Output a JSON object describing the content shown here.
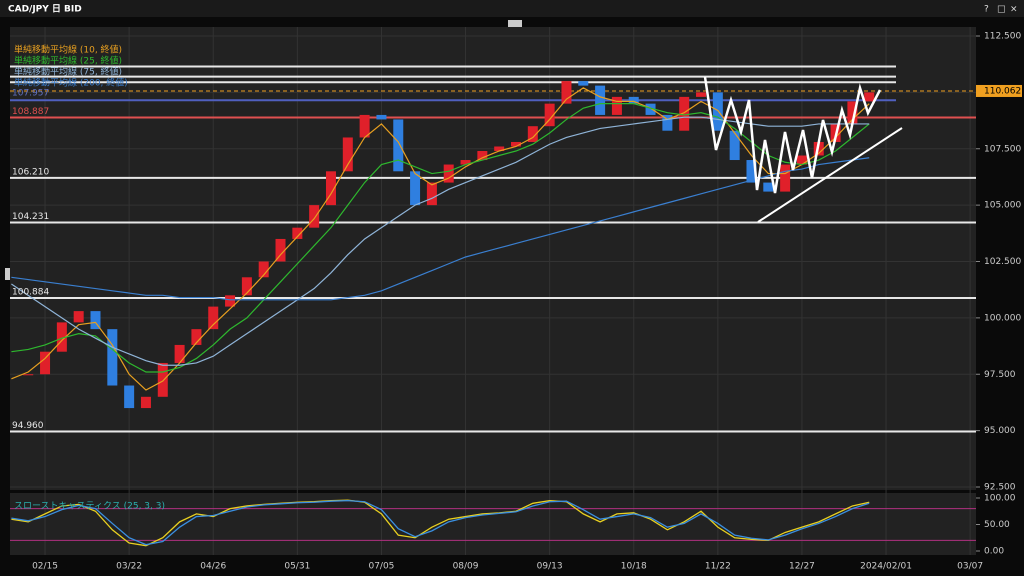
{
  "window": {
    "title": "CAD/JPY 日 BID",
    "buttons": [
      "?",
      "□",
      "×"
    ]
  },
  "chart_data": [
    {
      "type": "candlestick",
      "x": [
        null,
        null,
        "02/15",
        null,
        null,
        null,
        null,
        "03/22",
        null,
        null,
        null,
        null,
        "04/26",
        null,
        null,
        null,
        null,
        "05/31",
        null,
        null,
        null,
        null,
        "07/05",
        null,
        null,
        null,
        null,
        "08/09",
        null,
        null,
        null,
        null,
        "09/13",
        null,
        null,
        null,
        null,
        "10/18",
        null,
        null,
        null,
        null,
        "11/22",
        null,
        null,
        null,
        null,
        "12/27",
        null,
        null,
        null,
        null,
        "2024/02/01",
        null,
        null,
        null,
        null,
        "03/07"
      ],
      "values": [
        97.5,
        97.5,
        98.5,
        99.8,
        100.3,
        99.5,
        97.0,
        96.0,
        96.5,
        98.0,
        98.8,
        99.5,
        100.5,
        101.0,
        101.8,
        102.5,
        103.5,
        104.0,
        105.0,
        106.5,
        108.0,
        109.0,
        108.8,
        106.5,
        105.0,
        106.0,
        106.8,
        107.0,
        107.4,
        107.6,
        107.8,
        108.5,
        109.5,
        110.5,
        110.3,
        109.0,
        109.8,
        109.5,
        109.0,
        108.3,
        109.8,
        110.0,
        108.3,
        107.0,
        106.0,
        105.6,
        106.8,
        107.2,
        107.8,
        108.6,
        109.6,
        110.0,
        null,
        null,
        null,
        null,
        null,
        null
      ],
      "up_color": "#e0202a",
      "down_color": "#2f7fe0",
      "series": [
        {
          "name": "単純移動平均線 (10, 終値)",
          "color": "#e8a020",
          "values": [
            97.3,
            97.6,
            98.2,
            99.0,
            99.7,
            99.8,
            98.8,
            97.5,
            96.8,
            97.2,
            98.0,
            98.9,
            99.7,
            100.4,
            101.1,
            101.9,
            102.8,
            103.6,
            104.4,
            105.5,
            106.8,
            108.0,
            108.6,
            107.8,
            106.4,
            105.9,
            106.2,
            106.7,
            107.1,
            107.4,
            107.6,
            108.0,
            108.8,
            109.7,
            110.2,
            109.8,
            109.6,
            109.6,
            109.3,
            108.8,
            109.1,
            109.6,
            109.2,
            108.2,
            107.2,
            106.4,
            106.4,
            106.8,
            107.3,
            108.0,
            108.8,
            109.5,
            null,
            null,
            null,
            null,
            null,
            null
          ]
        },
        {
          "name": "単純移動平均線 (25, 終値)",
          "color": "#2eb82e",
          "values": [
            98.5,
            98.6,
            98.8,
            99.1,
            99.3,
            99.2,
            98.6,
            98.0,
            97.6,
            97.6,
            97.8,
            98.2,
            98.8,
            99.5,
            100.0,
            100.8,
            101.6,
            102.4,
            103.2,
            104.0,
            105.0,
            106.0,
            106.8,
            107.0,
            106.7,
            106.4,
            106.5,
            106.8,
            107.0,
            107.2,
            107.4,
            107.7,
            108.2,
            108.8,
            109.3,
            109.5,
            109.5,
            109.5,
            109.3,
            109.1,
            109.0,
            109.1,
            108.9,
            108.4,
            107.8,
            107.2,
            106.9,
            106.8,
            107.0,
            107.4,
            108.0,
            108.6,
            null,
            null,
            null,
            null,
            null,
            null
          ]
        },
        {
          "name": "単純移動平均線 (75, 終値)",
          "color": "#8fb4d8",
          "values": [
            101.5,
            101.0,
            100.5,
            100.0,
            99.5,
            99.1,
            98.7,
            98.4,
            98.1,
            97.9,
            97.9,
            98.0,
            98.3,
            98.8,
            99.3,
            99.8,
            100.3,
            100.8,
            101.3,
            102.0,
            102.8,
            103.5,
            104.0,
            104.5,
            105.0,
            105.3,
            105.7,
            106.0,
            106.3,
            106.6,
            106.9,
            107.3,
            107.7,
            108.0,
            108.2,
            108.4,
            108.5,
            108.6,
            108.7,
            108.8,
            108.9,
            108.9,
            108.8,
            108.7,
            108.6,
            108.5,
            108.5,
            108.5,
            108.6,
            108.6,
            108.6,
            108.6,
            null,
            null,
            null,
            null,
            null,
            null
          ]
        },
        {
          "name": "単純移動平均線 (200, 終値)",
          "color": "#3a7fd0",
          "values": [
            101.8,
            101.7,
            101.6,
            101.5,
            101.4,
            101.3,
            101.2,
            101.1,
            101.0,
            101.0,
            100.9,
            100.9,
            100.9,
            100.8,
            100.8,
            100.8,
            100.8,
            100.8,
            100.8,
            100.8,
            100.9,
            101.0,
            101.2,
            101.5,
            101.8,
            102.1,
            102.4,
            102.7,
            102.9,
            103.1,
            103.3,
            103.5,
            103.7,
            103.9,
            104.1,
            104.3,
            104.5,
            104.7,
            104.9,
            105.1,
            105.3,
            105.5,
            105.7,
            105.9,
            106.1,
            106.3,
            106.5,
            106.6,
            106.8,
            106.9,
            107.0,
            107.1,
            null,
            null,
            null,
            null,
            null,
            null
          ]
        }
      ],
      "levels": [
        {
          "value": 108.887,
          "label": "108.887",
          "color": "#e05050"
        },
        {
          "value": 106.21,
          "label": "106.210",
          "color": "#e8e8e8"
        },
        {
          "value": 104.231,
          "label": "104.231",
          "color": "#e8e8e8"
        },
        {
          "value": 100.884,
          "label": "100.884",
          "color": "#e8e8e8"
        },
        {
          "value": 94.96,
          "label": "94.960",
          "color": "#e8e8e8"
        }
      ],
      "lines": [
        {
          "value": 111.15,
          "color": "#e8e8e8"
        },
        {
          "value": 110.7,
          "color": "#e8e8e8"
        },
        {
          "value": 110.45,
          "color": "#e8e8e8"
        },
        {
          "value": 109.65,
          "color": "#5060c0"
        }
      ],
      "annotation": "107.957",
      "last_price": {
        "value": 110.062,
        "label": "110.062",
        "color": "#f0a020"
      },
      "ylim": [
        92.5,
        112.5
      ],
      "yticks": [
        {
          "value": 92.5,
          "label": "92.500"
        },
        {
          "value": 95,
          "label": "95.000"
        },
        {
          "value": 97.5,
          "label": "97.500"
        },
        {
          "value": 100,
          "label": "100.000"
        },
        {
          "value": 102.5,
          "label": "102.500"
        },
        {
          "value": 105,
          "label": "105.000"
        },
        {
          "value": 107.5,
          "label": "107.500"
        },
        {
          "value": 110,
          "label": "110.000"
        },
        {
          "value": 112.5,
          "label": "112.500"
        }
      ],
      "grid": true
    },
    {
      "type": "line",
      "title": "スローストキャスティクス (25, 3, 3)",
      "series": [
        {
          "color": "#e8d020",
          "values": [
            60,
            55,
            70,
            85,
            88,
            75,
            40,
            15,
            10,
            25,
            55,
            70,
            65,
            80,
            85,
            88,
            90,
            92,
            93,
            95,
            96,
            92,
            70,
            30,
            25,
            45,
            60,
            65,
            70,
            72,
            75,
            90,
            95,
            93,
            70,
            55,
            70,
            72,
            60,
            40,
            55,
            75,
            45,
            25,
            22,
            20,
            35,
            45,
            55,
            70,
            85,
            92
          ]
        },
        {
          "color": "#3a8fe0",
          "values": [
            62,
            57,
            65,
            78,
            86,
            80,
            52,
            25,
            12,
            18,
            45,
            65,
            67,
            75,
            83,
            87,
            89,
            91,
            92,
            94,
            95,
            93,
            78,
            42,
            27,
            38,
            55,
            63,
            68,
            71,
            74,
            85,
            93,
            94,
            78,
            60,
            65,
            70,
            63,
            45,
            52,
            70,
            52,
            30,
            24,
            21,
            30,
            42,
            52,
            65,
            80,
            90
          ]
        }
      ],
      "levels": [
        80,
        20
      ],
      "level_color": "#b03080",
      "ylim": [
        0,
        100
      ],
      "yticks": [
        {
          "value": 0,
          "label": "0.00"
        },
        {
          "value": 50,
          "label": "50.00"
        },
        {
          "value": 100,
          "label": "100.00"
        }
      ]
    }
  ]
}
